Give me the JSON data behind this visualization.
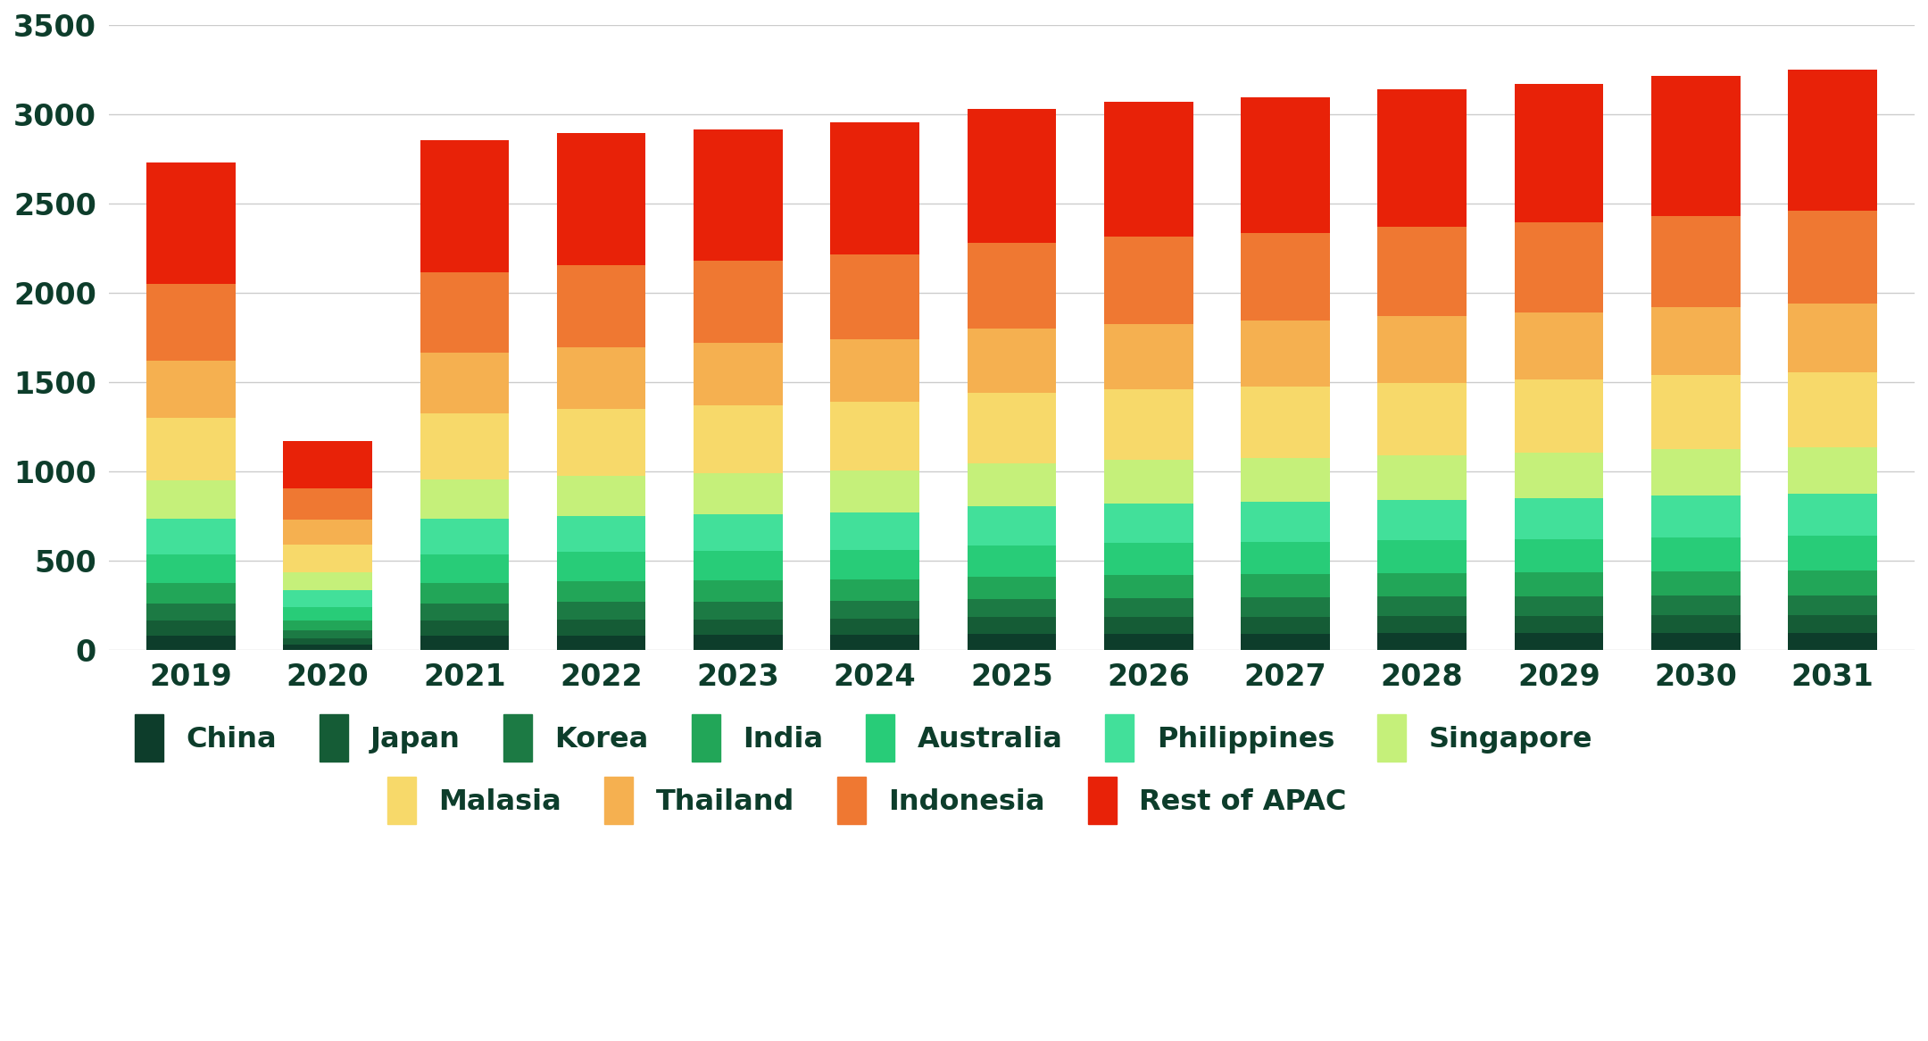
{
  "years": [
    2019,
    2020,
    2021,
    2022,
    2023,
    2024,
    2025,
    2026,
    2027,
    2028,
    2029,
    2030,
    2031
  ],
  "series": {
    "China": [
      80,
      30,
      80,
      82,
      83,
      83,
      90,
      90,
      92,
      93,
      93,
      95,
      95
    ],
    "Japan": [
      85,
      35,
      85,
      88,
      88,
      90,
      93,
      95,
      95,
      97,
      98,
      100,
      100
    ],
    "Korea": [
      95,
      45,
      95,
      98,
      98,
      100,
      103,
      105,
      106,
      108,
      109,
      111,
      112
    ],
    "India": [
      115,
      55,
      115,
      118,
      120,
      122,
      125,
      128,
      130,
      132,
      133,
      136,
      138
    ],
    "Australia": [
      160,
      75,
      160,
      163,
      165,
      167,
      175,
      180,
      182,
      183,
      187,
      190,
      193
    ],
    "Philippines": [
      200,
      95,
      200,
      203,
      207,
      210,
      218,
      222,
      224,
      226,
      229,
      232,
      236
    ],
    "Singapore": [
      215,
      100,
      220,
      223,
      229,
      232,
      240,
      244,
      247,
      250,
      254,
      260,
      262
    ],
    "Malasia": [
      350,
      155,
      370,
      375,
      382,
      385,
      395,
      398,
      401,
      407,
      410,
      415,
      420
    ],
    "Thailand": [
      320,
      140,
      338,
      343,
      348,
      352,
      360,
      365,
      368,
      372,
      376,
      380,
      385
    ],
    "Indonesia": [
      430,
      175,
      450,
      460,
      462,
      472,
      480,
      486,
      490,
      500,
      506,
      512,
      518
    ],
    "Rest of APAC": [
      680,
      265,
      740,
      740,
      735,
      742,
      750,
      755,
      760,
      770,
      776,
      782,
      790
    ]
  },
  "colors": {
    "China": "#0d3d2b",
    "Japan": "#155c36",
    "Korea": "#1c7a44",
    "India": "#22a658",
    "Australia": "#28cc78",
    "Philippines": "#42e09a",
    "Singapore": "#c5f07a",
    "Malasia": "#f7d96a",
    "Thailand": "#f5b050",
    "Indonesia": "#ef7832",
    "Rest of APAC": "#e82208"
  },
  "legend_order": [
    "China",
    "Japan",
    "Korea",
    "India",
    "Australia",
    "Philippines",
    "Singapore",
    "Malasia",
    "Thailand",
    "Indonesia",
    "Rest of APAC"
  ],
  "ylim": [
    0,
    3500
  ],
  "yticks": [
    0,
    500,
    1000,
    1500,
    2000,
    2500,
    3000,
    3500
  ],
  "background_color": "#ffffff",
  "text_color": "#0d3d2b",
  "bar_width": 0.65
}
